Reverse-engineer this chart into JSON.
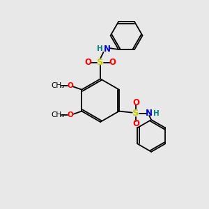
{
  "bg_color": "#e8e8e8",
  "bond_color": "#000000",
  "S_color": "#cccc00",
  "O_color": "#ff0000",
  "N_color": "#0000cc",
  "H_color": "#008080",
  "figsize": [
    3.0,
    3.0
  ],
  "dpi": 100,
  "xlim": [
    0,
    10
  ],
  "ylim": [
    0,
    10
  ]
}
